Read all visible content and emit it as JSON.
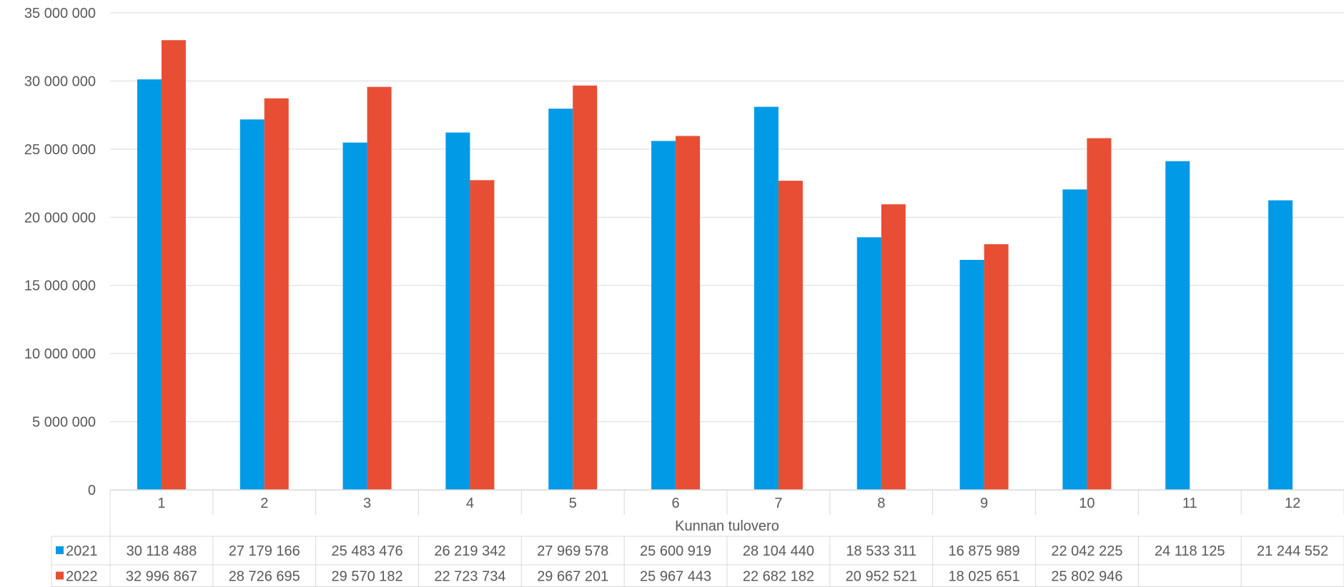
{
  "chart_data": {
    "type": "bar",
    "categories": [
      "1",
      "2",
      "3",
      "4",
      "5",
      "6",
      "7",
      "8",
      "9",
      "10",
      "11",
      "12"
    ],
    "category_group_label": "Kunnan tulovero",
    "series": [
      {
        "name": "2021",
        "color": "#009ae6",
        "values": [
          30118488,
          27179166,
          25483476,
          26219342,
          27969578,
          25600919,
          28104440,
          18533311,
          16875989,
          22042225,
          24118125,
          21244552
        ],
        "labels": [
          "30 118 488",
          "27 179 166",
          "25 483 476",
          "26 219 342",
          "27 969 578",
          "25 600 919",
          "28 104 440",
          "18 533 311",
          "16 875 989",
          "22 042 225",
          "24 118 125",
          "21 244 552"
        ]
      },
      {
        "name": "2022",
        "color": "#e84e33",
        "values": [
          32996867,
          28726695,
          29570182,
          22723734,
          29667201,
          25967443,
          22682182,
          20952521,
          18025651,
          25802946,
          null,
          null
        ],
        "labels": [
          "32 996 867",
          "28 726 695",
          "29 570 182",
          "22 723 734",
          "29 667 201",
          "25 967 443",
          "22 682 182",
          "20 952 521",
          "18 025 651",
          "25 802 946",
          "",
          ""
        ]
      }
    ],
    "ylim": [
      0,
      35000000
    ],
    "yticks": [
      0,
      5000000,
      10000000,
      15000000,
      20000000,
      25000000,
      30000000,
      35000000
    ],
    "ytick_labels": [
      "0",
      "5 000 000",
      "10 000 000",
      "15 000 000",
      "20 000 000",
      "25 000 000",
      "30 000 000",
      "35 000 000"
    ],
    "grid": true,
    "legend": "data-table",
    "title": "",
    "xlabel": "",
    "ylabel": ""
  }
}
